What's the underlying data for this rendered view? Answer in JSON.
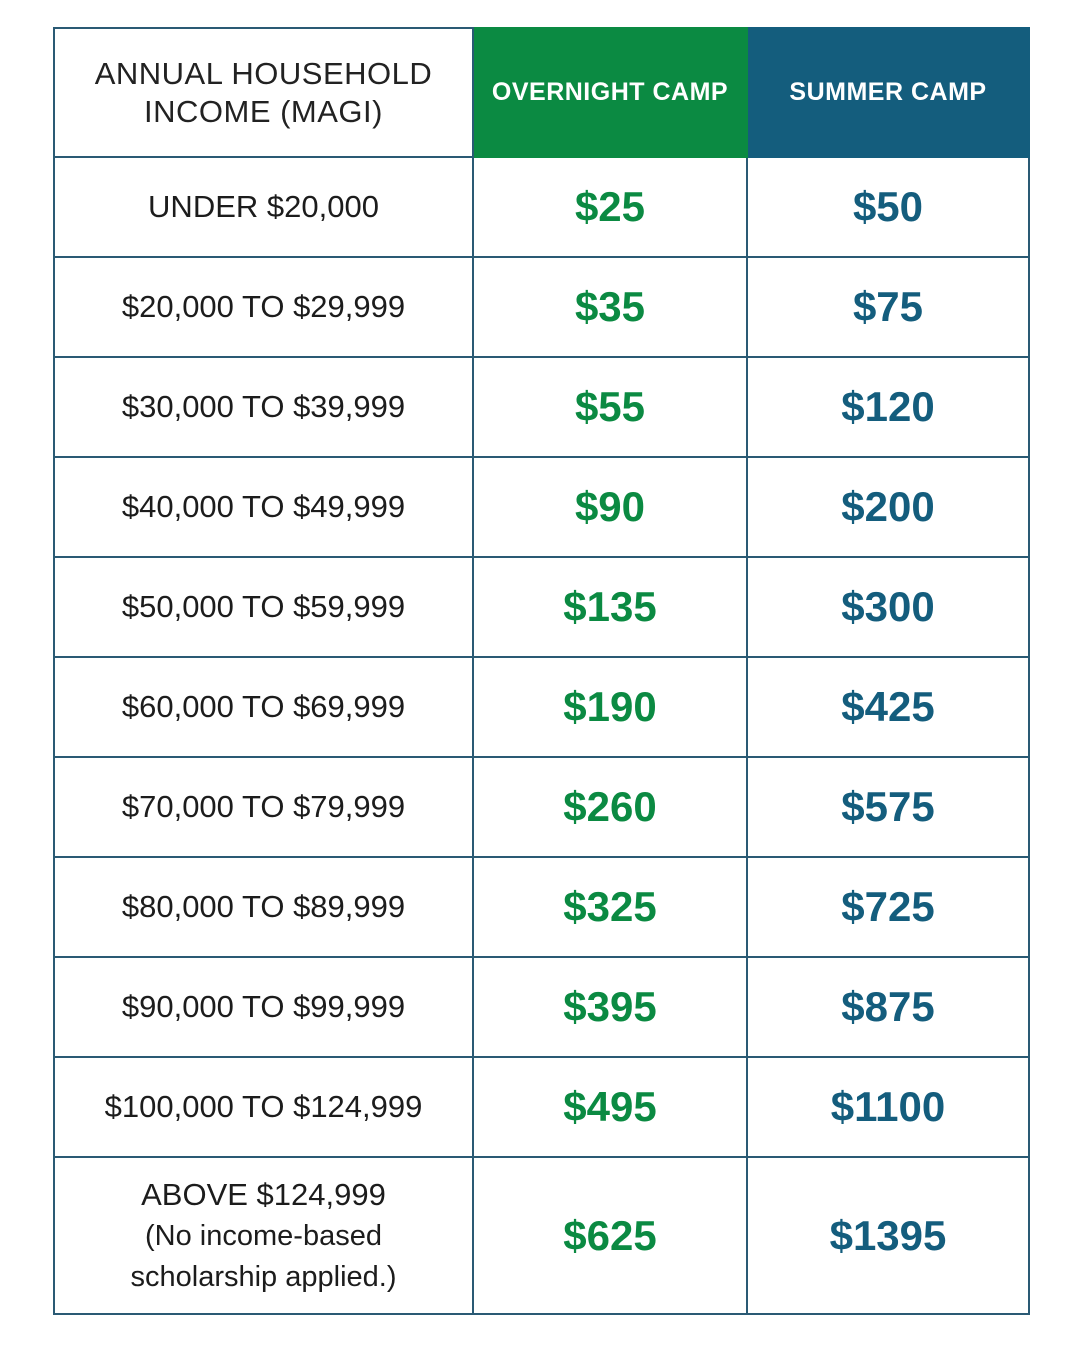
{
  "header": {
    "income_line1": "ANNUAL HOUSEHOLD",
    "income_line2": "INCOME (MAGI)",
    "overnight": "OVERNIGHT CAMP",
    "summer": "SUMMER CAMP"
  },
  "colors": {
    "overnight": "#0b8a42",
    "summer": "#145d7d",
    "border": "#2a5a74"
  },
  "rows": [
    {
      "income": "UNDER $20,000",
      "overnight": "$25",
      "summer": "$50"
    },
    {
      "income": "$20,000 TO $29,999",
      "overnight": "$35",
      "summer": "$75"
    },
    {
      "income": "$30,000 TO $39,999",
      "overnight": "$55",
      "summer": "$120"
    },
    {
      "income": "$40,000 TO $49,999",
      "overnight": "$90",
      "summer": "$200"
    },
    {
      "income": "$50,000 TO $59,999",
      "overnight": "$135",
      "summer": "$300"
    },
    {
      "income": "$60,000 TO $69,999",
      "overnight": "$190",
      "summer": "$425"
    },
    {
      "income": "$70,000 TO $79,999",
      "overnight": "$260",
      "summer": "$575"
    },
    {
      "income": "$80,000 TO $89,999",
      "overnight": "$325",
      "summer": "$725"
    },
    {
      "income": "$90,000 TO $99,999",
      "overnight": "$395",
      "summer": "$875"
    },
    {
      "income": "$100,000 TO $124,999",
      "overnight": "$495",
      "summer": "$1100"
    }
  ],
  "last_row": {
    "income": "ABOVE $124,999",
    "note_line1": "(No income-based",
    "note_line2": "scholarship applied.)",
    "overnight": "$625",
    "summer": "$1395"
  }
}
